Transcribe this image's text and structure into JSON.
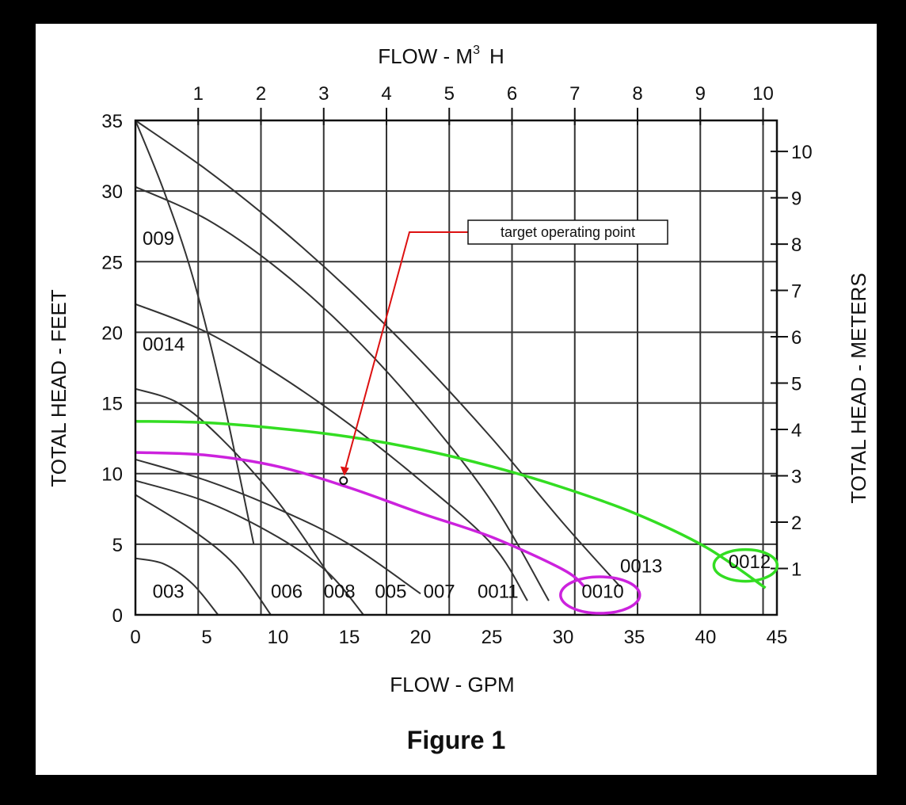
{
  "chart_data": {
    "type": "line",
    "caption": "Figure 1",
    "top_axis_label_main": "FLOW - M",
    "top_axis_label_sup": "3",
    "top_axis_label_tail": "H",
    "xlabel": "FLOW - GPM",
    "ylabel_left": "TOTAL HEAD - FEET",
    "ylabel_right": "TOTAL HEAD - METERS",
    "xlim": [
      0,
      45
    ],
    "ylim": [
      0,
      35
    ],
    "x_ticks": [
      "0",
      "5",
      "10",
      "15",
      "20",
      "25",
      "30",
      "35",
      "40",
      "45"
    ],
    "y_ticks": [
      "0",
      "5",
      "10",
      "15",
      "20",
      "25",
      "30",
      "35"
    ],
    "top_ticks": [
      "1",
      "2",
      "3",
      "4",
      "5",
      "6",
      "7",
      "8",
      "9",
      "10"
    ],
    "right_ticks": [
      "1",
      "2",
      "3",
      "4",
      "5",
      "6",
      "7",
      "8",
      "9",
      "10"
    ],
    "grid": true,
    "series": [
      {
        "name": "003",
        "color": "#333333",
        "points": [
          [
            0,
            4
          ],
          [
            2,
            3.6
          ],
          [
            4,
            2.2
          ],
          [
            5.8,
            0
          ]
        ]
      },
      {
        "name": "009",
        "color": "#333333",
        "points": [
          [
            0,
            35
          ],
          [
            2,
            30
          ],
          [
            4,
            24
          ],
          [
            6,
            16
          ],
          [
            8.3,
            5
          ]
        ]
      },
      {
        "name": "006",
        "color": "#333333",
        "points": [
          [
            0,
            8.5
          ],
          [
            4,
            6
          ],
          [
            7,
            3.5
          ],
          [
            9.5,
            0
          ]
        ]
      },
      {
        "name": "008",
        "color": "#333333",
        "points": [
          [
            0,
            16
          ],
          [
            3,
            15
          ],
          [
            6,
            12.5
          ],
          [
            10,
            8
          ],
          [
            13.8,
            2.5
          ]
        ]
      },
      {
        "name": "005",
        "color": "#333333",
        "points": [
          [
            0,
            9.5
          ],
          [
            5,
            8
          ],
          [
            10,
            5.5
          ],
          [
            13.5,
            3
          ],
          [
            16,
            0
          ]
        ]
      },
      {
        "name": "007",
        "color": "#333333",
        "points": [
          [
            0,
            11
          ],
          [
            5,
            9.5
          ],
          [
            10,
            7.5
          ],
          [
            15,
            5
          ],
          [
            20,
            1.5
          ]
        ]
      },
      {
        "name": "0014",
        "color": "#333333",
        "points": [
          [
            0,
            22
          ],
          [
            5,
            20
          ],
          [
            10,
            17
          ],
          [
            15,
            13.5
          ],
          [
            20,
            9.5
          ],
          [
            25,
            5
          ],
          [
            27.5,
            1
          ]
        ]
      },
      {
        "name": "0011",
        "color": "#333333",
        "points": [
          [
            0,
            30.3
          ],
          [
            5,
            28
          ],
          [
            10,
            24.5
          ],
          [
            15,
            20
          ],
          [
            20,
            14.5
          ],
          [
            25,
            8
          ],
          [
            29,
            1
          ]
        ]
      },
      {
        "name": "0013",
        "color": "#333333",
        "points": [
          [
            0,
            35
          ],
          [
            5,
            31.5
          ],
          [
            10,
            27.5
          ],
          [
            15,
            23
          ],
          [
            20,
            18
          ],
          [
            25,
            12.5
          ],
          [
            30,
            6.5
          ],
          [
            34,
            2
          ]
        ]
      },
      {
        "name": "0010",
        "color": "#cc22dd",
        "points": [
          [
            0,
            11.5
          ],
          [
            5,
            11.3
          ],
          [
            10,
            10.5
          ],
          [
            15,
            9
          ],
          [
            20,
            7.2
          ],
          [
            25,
            5.5
          ],
          [
            30,
            3.2
          ],
          [
            31.5,
            2
          ]
        ]
      },
      {
        "name": "0012",
        "color": "#33dd22",
        "points": [
          [
            0,
            13.7
          ],
          [
            5,
            13.6
          ],
          [
            10,
            13.2
          ],
          [
            15,
            12.6
          ],
          [
            20,
            11.7
          ],
          [
            25,
            10.5
          ],
          [
            30,
            9
          ],
          [
            35,
            7.2
          ],
          [
            40,
            4.8
          ],
          [
            44.2,
            1.9
          ]
        ]
      }
    ],
    "curve_labels": [
      {
        "text": "003",
        "x": 1.2,
        "y": 1.2
      },
      {
        "text": "009",
        "x": 0.5,
        "y": 26.2
      },
      {
        "text": "0014",
        "x": 0.5,
        "y": 18.7
      },
      {
        "text": "006",
        "x": 9.5,
        "y": 1.2
      },
      {
        "text": "008",
        "x": 13.2,
        "y": 1.2
      },
      {
        "text": "005",
        "x": 16.8,
        "y": 1.2
      },
      {
        "text": "007",
        "x": 20.2,
        "y": 1.2
      },
      {
        "text": "0011",
        "x": 24,
        "y": 1.2
      },
      {
        "text": "0013",
        "x": 34,
        "y": 3
      },
      {
        "text": "0010",
        "x": 31.3,
        "y": 1.2
      },
      {
        "text": "0012",
        "x": 41.6,
        "y": 3.3
      }
    ],
    "highlights": [
      {
        "label": "0010",
        "color": "#cc22dd",
        "cx": 32.6,
        "cy": 1.4
      },
      {
        "label": "0012",
        "color": "#33dd22",
        "cx": 42.8,
        "cy": 3.5
      }
    ],
    "annotation": {
      "text": "target operating point",
      "point_x": 14.6,
      "point_y": 9.5,
      "arrow_color": "#dd1111"
    }
  }
}
